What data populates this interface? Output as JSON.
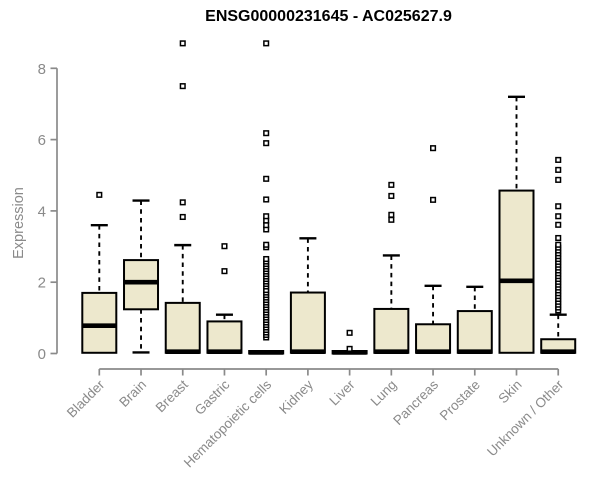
{
  "colors": {
    "box_fill": "#EDE8CD",
    "box_border": "#000000",
    "median": "#000000",
    "whisker": "#000000",
    "outlier_fill": "#FFFFFF",
    "axis": "#8A8A8A",
    "tick_label": "#8A8A8A",
    "title": "#000000",
    "background": "#FFFFFF"
  },
  "chart_data": {
    "type": "boxplot",
    "title": "ENSG00000231645 - AC025627.9",
    "xlabel": "",
    "ylabel": "Expression",
    "ylim": [
      0,
      8.8
    ],
    "yticks": [
      0,
      2,
      4,
      6,
      8
    ],
    "grid": false,
    "legend": false,
    "categories": [
      "Bladder",
      "Brain",
      "Breast",
      "Gastric",
      "Hematopoietic cells",
      "Kidney",
      "Liver",
      "Lung",
      "Pancreas",
      "Prostate",
      "Skin",
      "Unknown / Other"
    ],
    "series": [
      {
        "name": "Bladder",
        "whisker_low": 0,
        "q1": 0.02,
        "median": 0.78,
        "q3": 1.7,
        "whisker_high": 3.6,
        "outliers": [
          4.45
        ]
      },
      {
        "name": "Brain",
        "whisker_low": 0.03,
        "q1": 1.24,
        "median": 2.0,
        "q3": 2.62,
        "whisker_high": 4.29,
        "outliers": []
      },
      {
        "name": "Breast",
        "whisker_low": 0,
        "q1": 0.02,
        "median": 0.05,
        "q3": 1.42,
        "whisker_high": 3.04,
        "outliers": [
          3.83,
          4.24,
          7.5,
          8.7
        ]
      },
      {
        "name": "Gastric",
        "whisker_low": 0,
        "q1": 0.02,
        "median": 0.05,
        "q3": 0.9,
        "whisker_high": 1.09,
        "outliers": [
          2.31,
          3.01
        ]
      },
      {
        "name": "Hematopoietic cells",
        "whisker_low": 0,
        "q1": 0.0,
        "median": 0.03,
        "q3": 0.07,
        "whisker_high": 0.09,
        "outliers": [
          0.45,
          0.52,
          0.59,
          0.66,
          0.73,
          0.8,
          0.87,
          0.94,
          1.01,
          1.08,
          1.15,
          1.22,
          1.29,
          1.36,
          1.43,
          1.5,
          1.57,
          1.64,
          1.71,
          1.78,
          1.88,
          1.95,
          2.02,
          2.09,
          2.16,
          2.23,
          2.3,
          2.37,
          2.44,
          2.51,
          2.58,
          2.65,
          2.98,
          3.05,
          3.48,
          3.6,
          3.73,
          3.85,
          4.32,
          4.9,
          5.9,
          6.18,
          8.7
        ]
      },
      {
        "name": "Kidney",
        "whisker_low": 0,
        "q1": 0.02,
        "median": 0.05,
        "q3": 1.71,
        "whisker_high": 3.23,
        "outliers": []
      },
      {
        "name": "Liver",
        "whisker_low": 0,
        "q1": 0.0,
        "median": 0.03,
        "q3": 0.07,
        "whisker_high": 0.09,
        "outliers": [
          0.13,
          0.58
        ]
      },
      {
        "name": "Lung",
        "whisker_low": 0,
        "q1": 0.02,
        "median": 0.05,
        "q3": 1.25,
        "whisker_high": 2.75,
        "outliers": [
          3.75,
          3.89,
          4.42,
          4.73
        ]
      },
      {
        "name": "Pancreas",
        "whisker_low": 0,
        "q1": 0.02,
        "median": 0.05,
        "q3": 0.82,
        "whisker_high": 1.9,
        "outliers": [
          4.31,
          5.76
        ]
      },
      {
        "name": "Prostate",
        "whisker_low": 0,
        "q1": 0.02,
        "median": 0.05,
        "q3": 1.19,
        "whisker_high": 1.87,
        "outliers": []
      },
      {
        "name": "Skin",
        "whisker_low": 0,
        "q1": 0.02,
        "median": 2.04,
        "q3": 4.57,
        "whisker_high": 7.2,
        "outliers": []
      },
      {
        "name": "Unknown / Other",
        "whisker_low": 0,
        "q1": 0.02,
        "median": 0.05,
        "q3": 0.4,
        "whisker_high": 1.09,
        "outliers": [
          1.21,
          1.29,
          1.37,
          1.45,
          1.53,
          1.61,
          1.69,
          1.77,
          1.85,
          1.93,
          2.01,
          2.09,
          2.17,
          2.25,
          2.33,
          2.41,
          2.49,
          2.57,
          2.65,
          2.73,
          2.81,
          2.89,
          2.97,
          3.05,
          3.24,
          3.61,
          3.85,
          4.13,
          4.87,
          5.15,
          5.43
        ]
      }
    ]
  }
}
